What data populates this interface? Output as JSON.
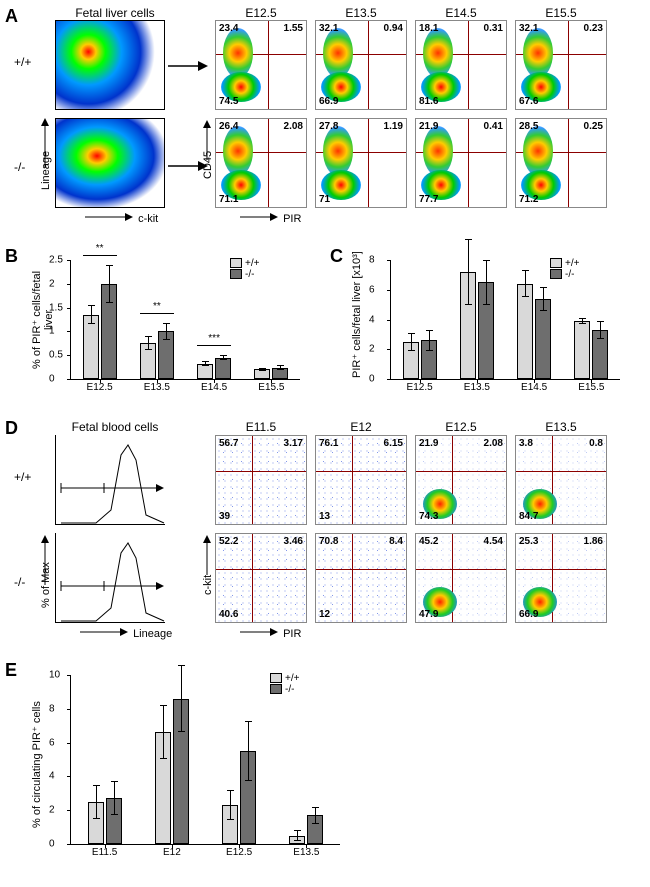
{
  "panelA": {
    "letter": "A",
    "row1_label": "+/+",
    "row2_label": "-/-",
    "big_title": "Fetal liver cells",
    "big_xlabel": "c-kit",
    "big_ylabel": "Lineage",
    "small_xlabel": "PIR",
    "small_ylabel": "CD45",
    "columns": [
      "E12.5",
      "E13.5",
      "E14.5",
      "E15.5"
    ],
    "wt": [
      {
        "ul": "23.4",
        "ur": "1.55",
        "ll": "74.5"
      },
      {
        "ul": "32.1",
        "ur": "0.94",
        "ll": "66.9"
      },
      {
        "ul": "18.1",
        "ur": "0.31",
        "ll": "81.6"
      },
      {
        "ul": "32.1",
        "ur": "0.23",
        "ll": "67.6"
      }
    ],
    "ko": [
      {
        "ul": "26.4",
        "ur": "2.08",
        "ll": "71.1"
      },
      {
        "ul": "27.8",
        "ur": "1.19",
        "ll": "71"
      },
      {
        "ul": "21.9",
        "ur": "0.41",
        "ll": "77.7"
      },
      {
        "ul": "28.5",
        "ur": "0.25",
        "ll": "71.2"
      }
    ]
  },
  "panelB": {
    "letter": "B",
    "ylabel": "% of PIR⁺ cells/fetal liver",
    "categories": [
      "E12.5",
      "E13.5",
      "E14.5",
      "E15.5"
    ],
    "legend": {
      "wt": "+/+",
      "ko": "-/-"
    },
    "colors": {
      "wt": "#d9d9d9",
      "ko": "#6e6e6e"
    },
    "wt": [
      1.35,
      0.75,
      0.32,
      0.2
    ],
    "ko": [
      2.0,
      1.0,
      0.45,
      0.24
    ],
    "err_wt": [
      0.2,
      0.15,
      0.05,
      0.04
    ],
    "err_ko": [
      0.4,
      0.18,
      0.06,
      0.05
    ],
    "ylim": [
      0,
      2.5
    ],
    "yticks": [
      0,
      0.5,
      1.0,
      1.5,
      2.0,
      2.5
    ],
    "sig": [
      "**",
      "**",
      "***",
      ""
    ]
  },
  "panelC": {
    "letter": "C",
    "ylabel": "PIR⁺ cells/fetal liver [x10³]",
    "categories": [
      "E12.5",
      "E13.5",
      "E14.5",
      "E15.5"
    ],
    "legend": {
      "wt": "+/+",
      "ko": "-/-"
    },
    "colors": {
      "wt": "#d9d9d9",
      "ko": "#6e6e6e"
    },
    "wt": [
      2.5,
      7.2,
      6.4,
      3.9
    ],
    "ko": [
      2.6,
      6.5,
      5.4,
      3.3
    ],
    "err_wt": [
      0.6,
      2.2,
      0.9,
      0.2
    ],
    "err_ko": [
      0.7,
      1.5,
      0.8,
      0.6
    ],
    "ylim": [
      0,
      8
    ],
    "yticks": [
      0,
      2,
      4,
      6,
      8
    ]
  },
  "panelD": {
    "letter": "D",
    "row1_label": "+/+",
    "row2_label": "-/-",
    "histo_title": "Fetal blood cells",
    "histo_xlabel": "Lineage",
    "histo_ylabel": "% of Max",
    "small_xlabel": "PIR",
    "small_ylabel": "c-kit",
    "columns": [
      "E11.5",
      "E12",
      "E12.5",
      "E13.5"
    ],
    "wt": [
      {
        "ul": "56.7",
        "ur": "3.17",
        "ll": "39"
      },
      {
        "ul": "76.1",
        "ur": "6.15",
        "ll": "13"
      },
      {
        "ul": "21.9",
        "ur": "2.08",
        "ll": "74.3"
      },
      {
        "ul": "3.8",
        "ur": "0.8",
        "ll": "84.7"
      }
    ],
    "ko": [
      {
        "ul": "52.2",
        "ur": "3.46",
        "ll": "40.6"
      },
      {
        "ul": "70.8",
        "ur": "8.4",
        "ll": "12"
      },
      {
        "ul": "45.2",
        "ur": "4.54",
        "ll": "47.9"
      },
      {
        "ul": "25.3",
        "ur": "1.86",
        "ll": "66.9"
      }
    ]
  },
  "panelE": {
    "letter": "E",
    "ylabel": "% of circulating PIR⁺ cells",
    "categories": [
      "E11.5",
      "E12",
      "E12.5",
      "E13.5"
    ],
    "legend": {
      "wt": "+/+",
      "ko": "-/-"
    },
    "colors": {
      "wt": "#d9d9d9",
      "ko": "#6e6e6e"
    },
    "wt": [
      2.5,
      6.6,
      2.3,
      0.5
    ],
    "ko": [
      2.7,
      8.6,
      5.5,
      1.7
    ],
    "err_wt": [
      1.0,
      1.6,
      0.9,
      0.3
    ],
    "err_ko": [
      1.0,
      2.0,
      1.8,
      0.5
    ],
    "ylim": [
      0,
      10
    ],
    "yticks": [
      0,
      2,
      4,
      6,
      8,
      10
    ]
  }
}
